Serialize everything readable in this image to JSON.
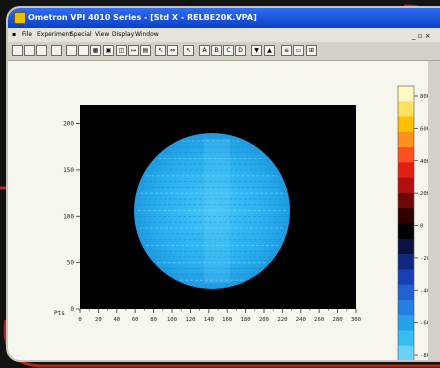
{
  "window": {
    "title": "Ometron VPI 4010 Series - [Std X - RELBE20K.VPA]",
    "mdi_controls": "_ ▫ ×"
  },
  "menu": {
    "items": [
      "File",
      "Experiment",
      "Special",
      "View",
      "Display",
      "Window"
    ]
  },
  "toolbar": {
    "buttons": [
      "new-icon",
      "open-icon",
      "save-icon",
      "print-icon",
      "preview-icon",
      "page-icon",
      "chart-icon",
      "image-icon",
      "frame-icon",
      "arrow-icon",
      "grid-icon",
      "cursor-icon",
      "measure-icon",
      "pointer-icon",
      "box-a-icon",
      "box-b-icon",
      "box-c-icon",
      "box-d-icon",
      "down-triangle-icon",
      "up-triangle-icon",
      "list-icon",
      "view-icon",
      "grid-view-icon"
    ]
  },
  "plot": {
    "x_axis_label": "Pts",
    "x_ticks": [
      "0",
      "20",
      "40",
      "60",
      "80",
      "100",
      "120",
      "140",
      "160",
      "180",
      "200",
      "220",
      "240",
      "260",
      "280",
      "300"
    ],
    "y_ticks": [
      "0",
      "50",
      "100",
      "150",
      "200"
    ],
    "color_scale_ticks": [
      "800",
      "600",
      "400",
      "200",
      "0",
      "-200",
      "-400",
      "-600",
      "-800"
    ],
    "color_scale": [
      "#fff8c0",
      "#ffe060",
      "#ffc000",
      "#ff9020",
      "#ff5020",
      "#e02010",
      "#b01010",
      "#700808",
      "#300000",
      "#000000",
      "#0c1040",
      "#102880",
      "#1840b0",
      "#2060d0",
      "#2480e0",
      "#28a0ea",
      "#38bdf2",
      "#6ad2f6"
    ],
    "disc_color": "#2aaff0",
    "background_color": "#000000"
  }
}
